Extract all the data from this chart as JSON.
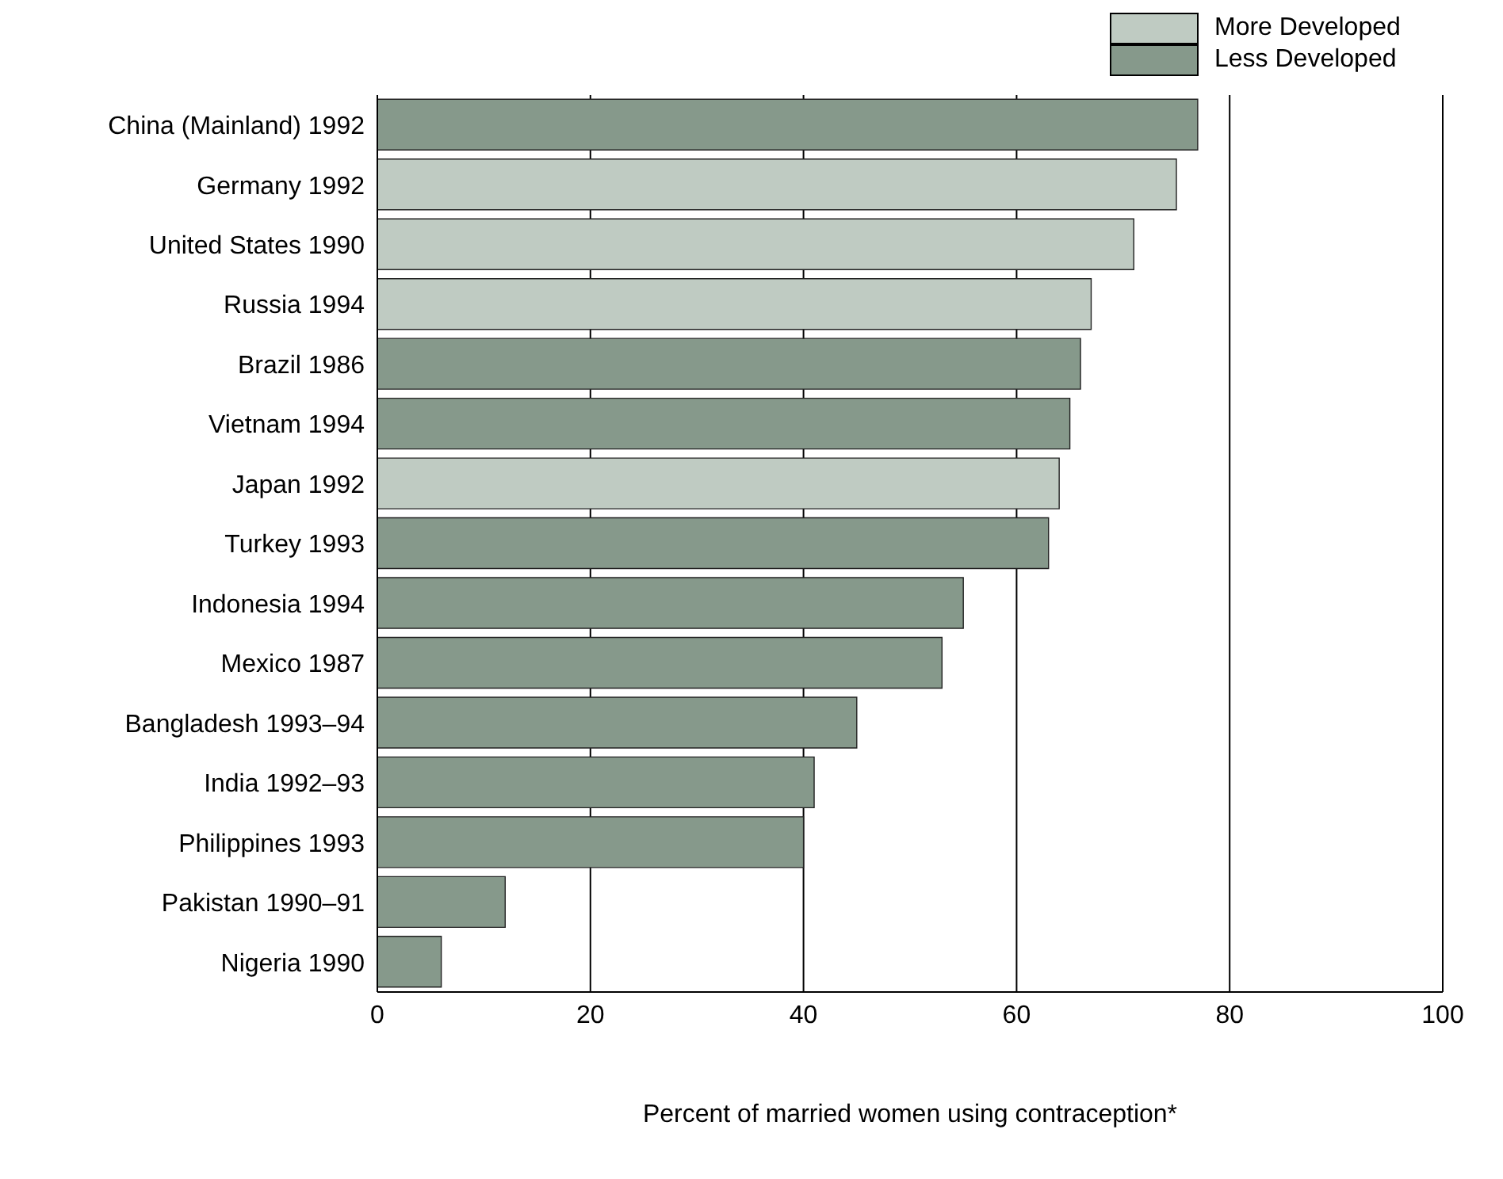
{
  "chart_data": {
    "type": "bar",
    "orientation": "horizontal",
    "stacked": true,
    "xlabel": "Percent of married women using contraception*",
    "categories": [
      "China (Mainland) 1992",
      "Germany 1992",
      "United States 1990",
      "Russia 1994",
      "Brazil 1986",
      "Vietnam 1994",
      "Japan 1992",
      "Turkey 1993",
      "Indonesia 1994",
      "Mexico 1987",
      "Bangladesh 1993–94",
      "India 1992–93",
      "Philippines 1993",
      "Pakistan 1990–91",
      "Nigeria 1990"
    ],
    "series": [
      {
        "name": "More Developed",
        "color": "#bfcbc2",
        "values": [
          null,
          75,
          71,
          67,
          null,
          null,
          64,
          null,
          null,
          null,
          null,
          null,
          null,
          null,
          null
        ]
      },
      {
        "name": "Less Developed",
        "color": "#86998b",
        "values": [
          77,
          null,
          null,
          null,
          66,
          65,
          null,
          63,
          55,
          53,
          45,
          41,
          40,
          12,
          6
        ]
      }
    ],
    "xlim": [
      0,
      100
    ],
    "xticks": [
      0,
      20,
      40,
      60,
      80,
      100
    ],
    "grid": "x",
    "legend": "top right"
  }
}
